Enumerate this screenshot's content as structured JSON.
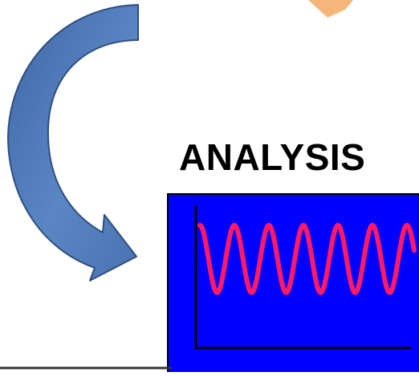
{
  "diagram": {
    "analysis_label": "ANALYSIS",
    "colors": {
      "arrow_fill": "#4a73b0",
      "arrow_stroke": "#2f4f7f",
      "panel_fill": "#0000ff",
      "wave_color": "#ff1a66",
      "axis_color": "#000000",
      "corner_accent": "#f5b779",
      "bottom_rule": "#333333"
    },
    "icons": [
      "curved-arrow-icon",
      "signal-wave-icon"
    ]
  }
}
